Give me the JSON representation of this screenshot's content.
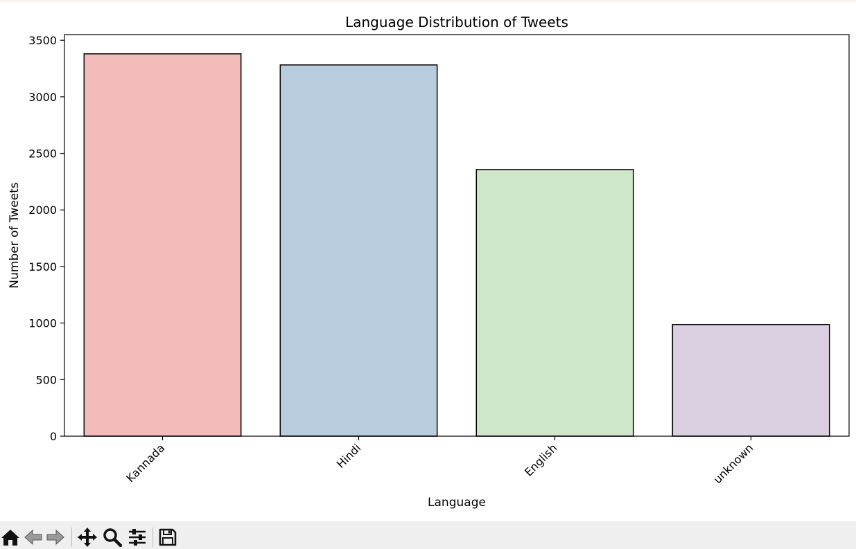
{
  "chart_data": {
    "type": "bar",
    "title": "Language Distribution of Tweets",
    "xlabel": "Language",
    "ylabel": "Number of Tweets",
    "categories": [
      "Kannada",
      "Hindi",
      "English",
      "unknown"
    ],
    "values": [
      3380,
      3282,
      2357,
      987
    ],
    "colors": [
      "#f1bcb9",
      "#b9ccdd",
      "#d0e6cb",
      "#dbcfe2"
    ],
    "ylim": [
      0,
      3550
    ],
    "yticks": [
      0,
      500,
      1000,
      1500,
      2000,
      2500,
      3000,
      3500
    ],
    "ytick_labels": [
      "0",
      "500",
      "1000",
      "1500",
      "2000",
      "2500",
      "3000",
      "3500"
    ],
    "xtick_rotation_deg": 45,
    "grid": false,
    "edge_color": "#000000"
  },
  "toolbar": {
    "buttons": [
      {
        "name": "home-button",
        "icon": "home-icon"
      },
      {
        "name": "back-button",
        "icon": "arrow-left-icon"
      },
      {
        "name": "forward-button",
        "icon": "arrow-right-icon"
      },
      {
        "name": "pan-button",
        "icon": "move-icon"
      },
      {
        "name": "zoom-button",
        "icon": "magnifier-icon"
      },
      {
        "name": "configure-subplots-button",
        "icon": "sliders-icon"
      },
      {
        "name": "save-button",
        "icon": "floppy-disk-icon"
      }
    ]
  }
}
